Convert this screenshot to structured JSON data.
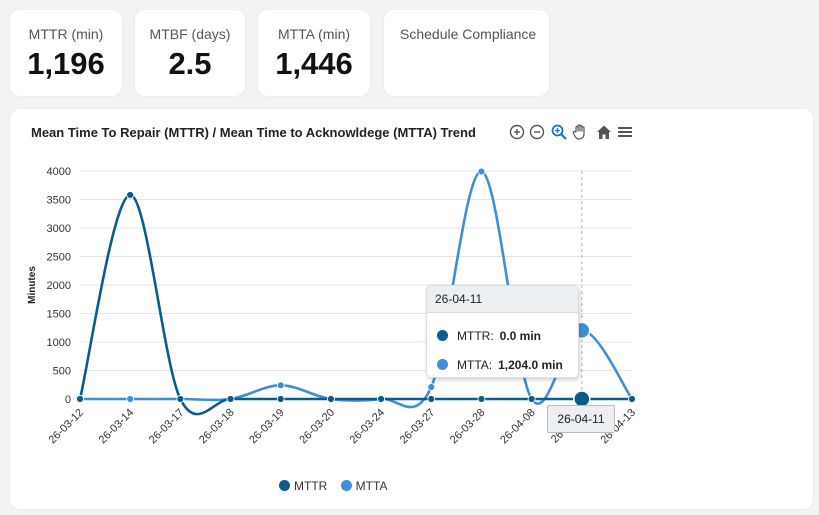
{
  "kpis": {
    "mttr": {
      "label": "MTTR (min)",
      "value": "1,196"
    },
    "mtbf": {
      "label": "MTBF (days)",
      "value": "2.5"
    },
    "mtta": {
      "label": "MTTA (min)",
      "value": "1,446"
    },
    "schedule": {
      "label": "Schedule Compliance",
      "value": ""
    }
  },
  "toolbar": {
    "icons": [
      "zoom-in-icon",
      "zoom-out-icon",
      "selection-zoom-icon",
      "pan-hand-icon",
      "home-reset-icon",
      "menu-icon"
    ]
  },
  "tooltip": {
    "title": "26-04-11",
    "rows": [
      {
        "label": "MTTR:",
        "value": "0.0 min"
      },
      {
        "label": "MTTA:",
        "value": "1,204.0 min"
      }
    ]
  },
  "crosshair_label": "26-04-11",
  "colors": {
    "mttr": "#0b5c8e",
    "mtta": "#3f8fd6",
    "grid": "#e6e6e6",
    "crosshair": "#b5b5b5"
  },
  "chart_data": {
    "type": "line",
    "title": "Mean Time To Repair (MTTR) / Mean Time to Acknowldege (MTTA) Trend",
    "ylabel": "Minutes",
    "xlabel": "",
    "ylim": [
      0,
      4000
    ],
    "yticks": [
      0,
      500,
      1000,
      1500,
      2000,
      2500,
      3000,
      3500,
      4000
    ],
    "categories": [
      "26-03-12",
      "26-03-14",
      "26-03-17",
      "26-03-18",
      "26-03-19",
      "26-03-20",
      "26-03-24",
      "26-03-27",
      "26-03-28",
      "26-04-08",
      "26-04-11",
      "26-04-13"
    ],
    "series": [
      {
        "name": "MTTR",
        "values": [
          0,
          3580,
          0,
          0,
          0,
          0,
          0,
          0,
          0,
          0,
          0,
          0
        ]
      },
      {
        "name": "MTTA",
        "values": [
          0,
          0,
          0,
          0,
          240,
          0,
          0,
          210,
          3990,
          0,
          1204,
          0
        ]
      }
    ],
    "grid": true,
    "legend": "bottom-center",
    "smooth": true,
    "highlighted_category": "26-04-11"
  }
}
